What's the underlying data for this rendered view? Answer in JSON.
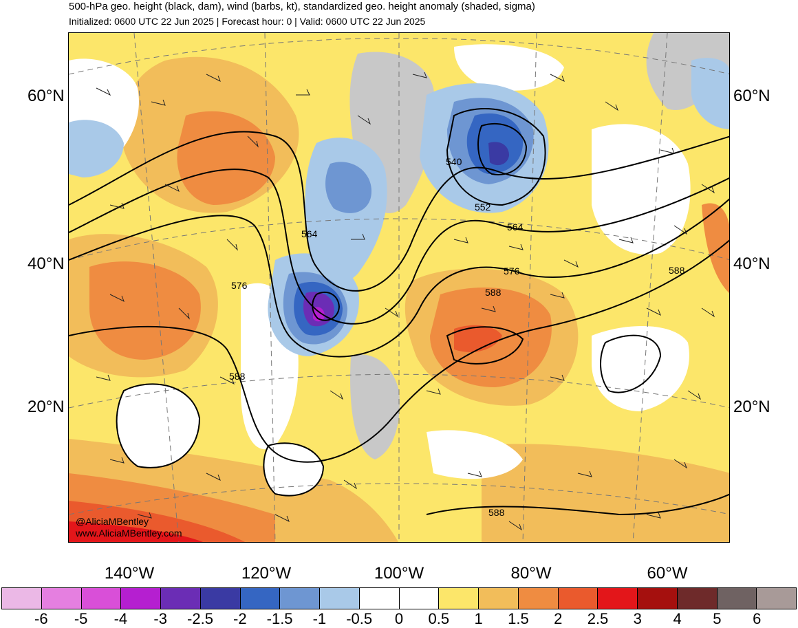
{
  "header": {
    "title": "500-hPa geo. height (black, dam), wind (barbs, kt), standardized geo. height anomaly (shaded, sigma)",
    "subtitle": "Initialized: 0600 UTC 22 Jun 2025 | Forecast hour: 0 | Valid: 0600 UTC 22 Jun 2025"
  },
  "map": {
    "lat_labels": [
      "60°N",
      "40°N",
      "20°N"
    ],
    "lon_labels": [
      "140°W",
      "120°W",
      "100°W",
      "80°W",
      "60°W"
    ],
    "contour_labels": [
      "540",
      "552",
      "564",
      "564",
      "576",
      "576",
      "588",
      "588",
      "588",
      "588"
    ],
    "credit_handle": "@AliciaMBentley",
    "credit_url": "www.AliciaMBentley.com",
    "colors": {
      "land_gray": "#c8c8c8",
      "ocean_neutral": "#ffffff",
      "contour": "#000000"
    }
  },
  "colorbar": {
    "labels": [
      "-6",
      "-5",
      "-4",
      "-3",
      "-2.5",
      "-2",
      "-1.5",
      "-1",
      "-0.5",
      "0",
      "0.5",
      "1",
      "1.5",
      "2",
      "2.5",
      "3",
      "4",
      "5",
      "6"
    ],
    "colors": [
      "#ebb8e6",
      "#e57fe0",
      "#d94fd8",
      "#b51fd0",
      "#6b2db5",
      "#3a3aa3",
      "#3566c2",
      "#6e96d2",
      "#a9c9e8",
      "#ffffff",
      "#ffffff",
      "#fce66a",
      "#f2bd5a",
      "#ef8c41",
      "#ea5a2d",
      "#e3161a",
      "#a5100e",
      "#6e2a2a",
      "#6f6262",
      "#a89a98"
    ]
  }
}
